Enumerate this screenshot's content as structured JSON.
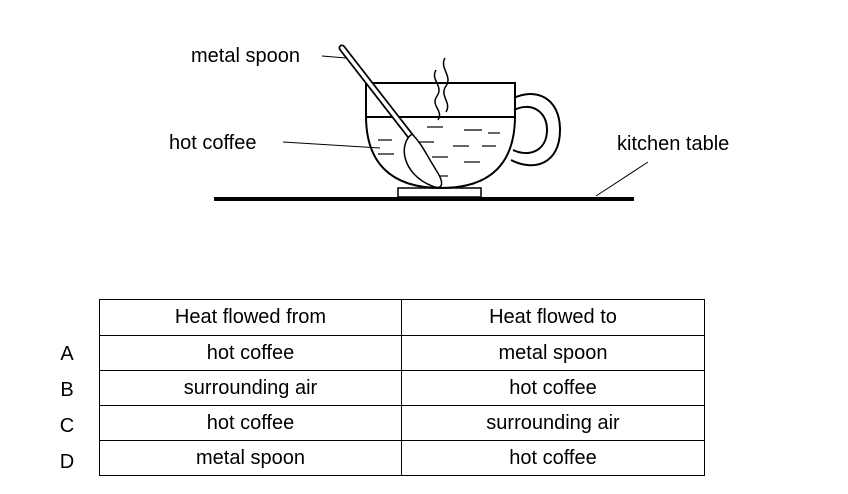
{
  "labels": {
    "spoon": "metal spoon",
    "coffee": "hot coffee",
    "table": "kitchen table"
  },
  "table": {
    "headers": [
      "Heat flowed from",
      "Heat flowed to"
    ],
    "rows": [
      {
        "option": "A",
        "from": "hot coffee",
        "to": "metal spoon"
      },
      {
        "option": "B",
        "from": "surrounding air",
        "to": "hot coffee"
      },
      {
        "option": "C",
        "from": "hot coffee",
        "to": "surrounding air"
      },
      {
        "option": "D",
        "from": "metal spoon",
        "to": "hot coffee"
      }
    ]
  }
}
